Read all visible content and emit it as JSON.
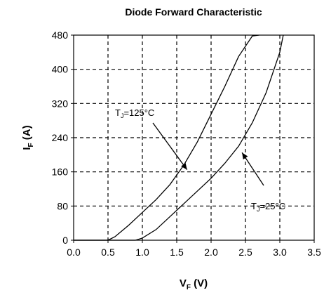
{
  "chart_data": {
    "type": "line",
    "title": "Diode Forward Characteristic",
    "xlabel": {
      "main": "V",
      "sub": "F",
      "unit": " (V)"
    },
    "ylabel": {
      "main": "I",
      "sub": "F",
      "unit": " (A)"
    },
    "xlim": [
      0,
      3.5
    ],
    "ylim": [
      0,
      480
    ],
    "xticks": [
      "0.0",
      "0.5",
      "1.0",
      "1.5",
      "2.0",
      "2.5",
      "3.0",
      "3.5"
    ],
    "yticks": [
      "0",
      "80",
      "160",
      "240",
      "320",
      "400",
      "480"
    ],
    "grid": true,
    "series": [
      {
        "x": [
          0.0,
          0.5,
          0.6,
          0.8,
          1.0,
          1.2,
          1.4,
          1.6,
          1.8,
          2.0,
          2.2,
          2.4,
          2.6,
          2.7
        ],
        "y": [
          0,
          0,
          8,
          35,
          65,
          95,
          130,
          175,
          230,
          295,
          360,
          430,
          478,
          480
        ]
      },
      {
        "x": [
          0.0,
          0.9,
          1.0,
          1.2,
          1.4,
          1.6,
          1.8,
          2.0,
          2.2,
          2.4,
          2.6,
          2.8,
          3.0,
          3.05
        ],
        "y": [
          0,
          0,
          5,
          25,
          55,
          85,
          115,
          145,
          180,
          220,
          275,
          345,
          440,
          480
        ]
      }
    ],
    "annotations": [
      {
        "main": "T",
        "sub": "J",
        "rest": "=125°C",
        "x": 1.65,
        "y": 165
      },
      {
        "main": "T",
        "sub": "J",
        "rest": "=25°C",
        "x": 2.45,
        "y": 205
      }
    ]
  }
}
